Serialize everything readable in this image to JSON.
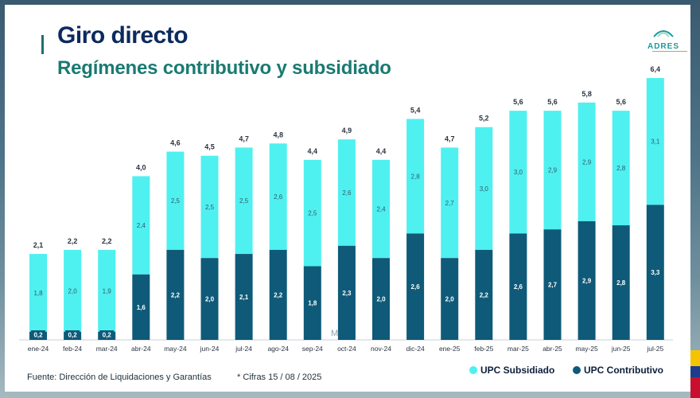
{
  "header": {
    "title": "Giro directo",
    "subtitle": "Regímenes contributivo y subsidiado"
  },
  "logo": {
    "text": "ADRES"
  },
  "footer": {
    "source": "Fuente: Dirección de Liquidaciones y Garantías",
    "note": "* Cifras 15 / 08 / 2025"
  },
  "watermark": "M",
  "colors": {
    "subsidiado": "#4ff0f0",
    "contributivo": "#0e5a78",
    "title": "#0b2a5e",
    "subtitle": "#1a7a72",
    "total_label": "#2b3440",
    "in_bar_light": "#2e5d6b",
    "in_bar_dark": "#ffffff",
    "small_badge": "#0e5a78"
  },
  "chart_data": {
    "type": "bar",
    "stacked": true,
    "categories": [
      "ene-24",
      "feb-24",
      "mar-24",
      "abr-24",
      "may-24",
      "jun-24",
      "jul-24",
      "ago-24",
      "sep-24",
      "oct-24",
      "nov-24",
      "dic-24",
      "ene-25",
      "feb-25",
      "mar-25",
      "abr-25",
      "may-25",
      "jun-25",
      "jul-25"
    ],
    "series": [
      {
        "name": "UPC Contributivo",
        "values": [
          0.2,
          0.2,
          0.2,
          1.6,
          2.2,
          2.0,
          2.1,
          2.2,
          1.8,
          2.3,
          2.0,
          2.6,
          2.0,
          2.2,
          2.6,
          2.7,
          2.9,
          2.8,
          3.3
        ],
        "labels": [
          "0,2",
          "0,2",
          "0,2",
          "1,6",
          "2,2",
          "2,0",
          "2,1",
          "2,2",
          "1,8",
          "2,3",
          "2,0",
          "2,6",
          "2,0",
          "2,2",
          "2,6",
          "2,7",
          "2,9",
          "2,8",
          "3,3"
        ]
      },
      {
        "name": "UPC Subsidiado",
        "values": [
          1.8,
          2.0,
          1.9,
          2.4,
          2.5,
          2.5,
          2.5,
          2.6,
          2.5,
          2.6,
          2.4,
          2.8,
          2.7,
          3.0,
          3.0,
          2.9,
          2.9,
          2.8,
          3.1
        ],
        "labels": [
          "1,8",
          "2,0",
          "1,9",
          "2,4",
          "2,5",
          "2,5",
          "2,5",
          "2,6",
          "2,5",
          "2,6",
          "2,4",
          "2,8",
          "2,7",
          "3,0",
          "3,0",
          "2,9",
          "2,9",
          "2,8",
          "3,1"
        ]
      }
    ],
    "totals": [
      2.1,
      2.2,
      2.2,
      4.0,
      4.6,
      4.5,
      4.7,
      4.8,
      4.4,
      4.9,
      4.4,
      5.4,
      4.7,
      5.2,
      5.6,
      5.6,
      5.8,
      5.6,
      6.4
    ],
    "total_labels": [
      "2,1",
      "2,2",
      "2,2",
      "4,0",
      "4,6",
      "4,5",
      "4,7",
      "4,8",
      "4,4",
      "4,9",
      "4,4",
      "5,4",
      "4,7",
      "5,2",
      "5,6",
      "5,6",
      "5,8",
      "5,6",
      "6,4"
    ],
    "legend": [
      "UPC Subsidiado",
      "UPC Contributivo"
    ],
    "legend_position": "bottom-right",
    "ylim": [
      0,
      6.4
    ],
    "grid": false
  }
}
